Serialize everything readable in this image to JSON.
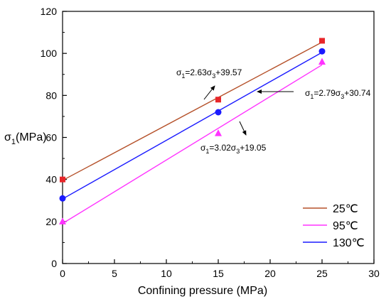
{
  "chart_data": {
    "type": "scatter",
    "xlabel": "Confining pressure (MPa)",
    "ylabel_main": "σ",
    "ylabel_sub": "1",
    "ylabel_rest": "(MPa)",
    "xlim": [
      0,
      30
    ],
    "ylim": [
      0,
      120
    ],
    "xticks": [
      0,
      5,
      10,
      15,
      20,
      25,
      30
    ],
    "yticks": [
      0,
      20,
      40,
      60,
      80,
      100,
      120
    ],
    "grid": false,
    "legend_position": "bottom-right",
    "series": [
      {
        "name": "25℃",
        "color": "#e8262a",
        "line_color": "#b5512a",
        "marker": "square",
        "x": [
          0,
          15,
          25
        ],
        "y": [
          40,
          78,
          106
        ],
        "fit": {
          "slope": 2.63,
          "intercept": 39.57
        }
      },
      {
        "name": "95℃",
        "color": "#ff33ff",
        "line_color": "#ff33ff",
        "marker": "triangle",
        "x": [
          0,
          15,
          25
        ],
        "y": [
          20,
          62,
          96
        ],
        "fit": {
          "slope": 3.02,
          "intercept": 19.05
        }
      },
      {
        "name": "130℃",
        "color": "#1a1aff",
        "line_color": "#1a1aff",
        "marker": "circle",
        "x": [
          0,
          15,
          25
        ],
        "y": [
          31,
          72,
          101
        ],
        "fit": {
          "slope": 2.79,
          "intercept": 30.74
        }
      }
    ],
    "annotations": [
      {
        "id": "eq-25",
        "main": "σ",
        "sub1": "1",
        "mid": "=2.63σ",
        "sub2": "3",
        "tail": "+39.57"
      },
      {
        "id": "eq-130",
        "main": "σ",
        "sub1": "1",
        "mid": "=2.79σ",
        "sub2": "3",
        "tail": "+30.74"
      },
      {
        "id": "eq-95",
        "main": "σ",
        "sub1": "1",
        "mid": "=3.02σ",
        "sub2": "3",
        "tail": "+19.05"
      }
    ]
  }
}
